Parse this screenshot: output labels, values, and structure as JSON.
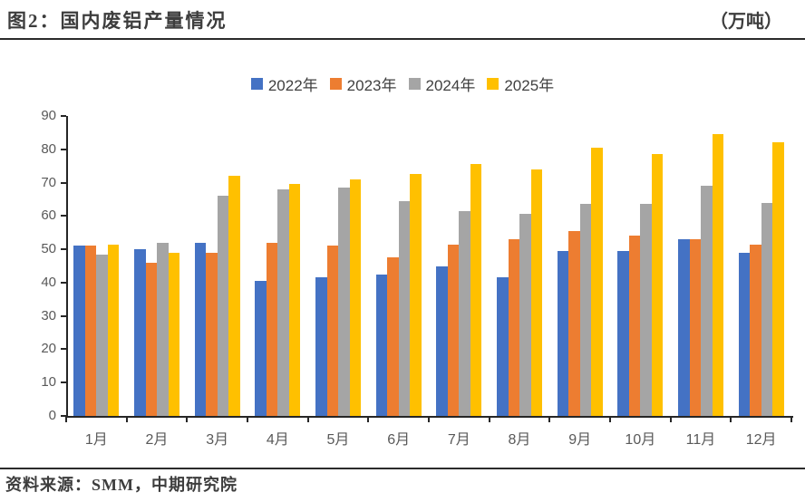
{
  "header": {
    "title": "图2：国内废铝产量情况",
    "unit": "（万吨）"
  },
  "chart_data": {
    "type": "bar",
    "title": "图2：国内废铝产量情况",
    "value_unit": "万吨",
    "categories": [
      "1月",
      "2月",
      "3月",
      "4月",
      "5月",
      "6月",
      "7月",
      "8月",
      "9月",
      "10月",
      "11月",
      "12月"
    ],
    "series": [
      {
        "name": "2022年",
        "color": "#4472C4",
        "values": [
          51,
          50,
          52,
          40.5,
          41.5,
          42.5,
          45,
          41.5,
          49.5,
          49.5,
          53,
          49
        ]
      },
      {
        "name": "2023年",
        "color": "#ED7D31",
        "values": [
          51,
          46,
          49,
          52,
          51,
          47.5,
          51.5,
          53,
          55.5,
          54,
          53,
          51.5
        ]
      },
      {
        "name": "2024年",
        "color": "#A5A5A5",
        "values": [
          48.5,
          52,
          66,
          68,
          68.5,
          64.5,
          61.5,
          60.5,
          63.5,
          63.5,
          69,
          64
        ]
      },
      {
        "name": "2025年",
        "color": "#FFC000",
        "values": [
          51.5,
          49,
          72,
          69.5,
          71,
          72.5,
          75.5,
          74,
          80.5,
          78.5,
          84.5,
          82
        ]
      }
    ],
    "ylim": [
      0,
      90
    ],
    "yticks": [
      0,
      10,
      20,
      30,
      40,
      50,
      60,
      70,
      80,
      90
    ],
    "legend_position": "top",
    "grid": false
  },
  "footer": {
    "source": "资料来源：SMM，中期研究院"
  }
}
